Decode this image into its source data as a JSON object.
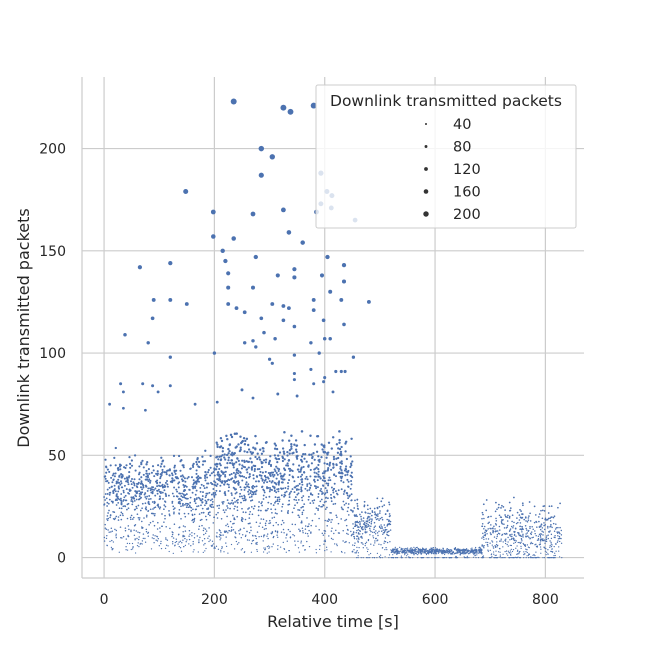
{
  "chart_data": {
    "type": "scatter",
    "title": "",
    "xlabel": "Relative time [s]",
    "ylabel": "Downlink transmitted packets",
    "xlim": [
      -40,
      870
    ],
    "ylim": [
      -10,
      235
    ],
    "xticks": [
      0,
      200,
      400,
      600,
      800
    ],
    "yticks": [
      0,
      50,
      100,
      150,
      200
    ],
    "xtick_labels": [
      "0",
      "200",
      "400",
      "600",
      "800"
    ],
    "ytick_labels": [
      "0",
      "50",
      "100",
      "150",
      "200"
    ],
    "grid": true,
    "point_color": "#4c72b0",
    "size_encoding": "Downlink transmitted packets",
    "legend": {
      "title": "Downlink transmitted packets",
      "placement": "top-right",
      "entries": [
        "40",
        "80",
        "120",
        "160",
        "200"
      ],
      "size_values": [
        40,
        80,
        120,
        160,
        200
      ]
    },
    "highlight_points": [
      {
        "x": 235,
        "y": 223
      },
      {
        "x": 325,
        "y": 220
      },
      {
        "x": 338,
        "y": 218
      },
      {
        "x": 380,
        "y": 221
      },
      {
        "x": 285,
        "y": 200
      },
      {
        "x": 305,
        "y": 196
      },
      {
        "x": 393,
        "y": 188
      },
      {
        "x": 285,
        "y": 187
      },
      {
        "x": 148,
        "y": 179
      },
      {
        "x": 404,
        "y": 179
      },
      {
        "x": 413,
        "y": 177
      },
      {
        "x": 393,
        "y": 173
      },
      {
        "x": 412,
        "y": 171
      },
      {
        "x": 325,
        "y": 170
      },
      {
        "x": 198,
        "y": 169
      },
      {
        "x": 270,
        "y": 168
      },
      {
        "x": 385,
        "y": 169
      },
      {
        "x": 455,
        "y": 165
      },
      {
        "x": 335,
        "y": 159
      },
      {
        "x": 198,
        "y": 157
      },
      {
        "x": 235,
        "y": 156
      },
      {
        "x": 360,
        "y": 154
      },
      {
        "x": 215,
        "y": 150
      },
      {
        "x": 405,
        "y": 147
      },
      {
        "x": 275,
        "y": 147
      },
      {
        "x": 120,
        "y": 144
      },
      {
        "x": 220,
        "y": 145
      },
      {
        "x": 435,
        "y": 143
      },
      {
        "x": 65,
        "y": 142
      },
      {
        "x": 345,
        "y": 141
      },
      {
        "x": 345,
        "y": 137
      },
      {
        "x": 225,
        "y": 139
      },
      {
        "x": 315,
        "y": 138
      },
      {
        "x": 395,
        "y": 138
      },
      {
        "x": 435,
        "y": 135
      },
      {
        "x": 270,
        "y": 132
      },
      {
        "x": 225,
        "y": 132
      },
      {
        "x": 410,
        "y": 130
      },
      {
        "x": 90,
        "y": 126
      },
      {
        "x": 120,
        "y": 126
      },
      {
        "x": 380,
        "y": 126
      },
      {
        "x": 430,
        "y": 126
      },
      {
        "x": 480,
        "y": 125
      },
      {
        "x": 150,
        "y": 124
      },
      {
        "x": 225,
        "y": 124
      },
      {
        "x": 305,
        "y": 124
      },
      {
        "x": 325,
        "y": 123
      },
      {
        "x": 335,
        "y": 122
      },
      {
        "x": 380,
        "y": 121
      },
      {
        "x": 240,
        "y": 122
      },
      {
        "x": 88,
        "y": 117
      },
      {
        "x": 255,
        "y": 120
      },
      {
        "x": 285,
        "y": 117
      },
      {
        "x": 325,
        "y": 116
      },
      {
        "x": 398,
        "y": 116
      },
      {
        "x": 345,
        "y": 113
      },
      {
        "x": 435,
        "y": 114
      },
      {
        "x": 290,
        "y": 110
      },
      {
        "x": 38,
        "y": 109
      },
      {
        "x": 310,
        "y": 107
      },
      {
        "x": 270,
        "y": 106
      },
      {
        "x": 400,
        "y": 107
      },
      {
        "x": 410,
        "y": 107
      },
      {
        "x": 80,
        "y": 105
      },
      {
        "x": 255,
        "y": 105
      },
      {
        "x": 375,
        "y": 105
      },
      {
        "x": 275,
        "y": 103
      },
      {
        "x": 390,
        "y": 100
      },
      {
        "x": 200,
        "y": 100
      },
      {
        "x": 345,
        "y": 99
      },
      {
        "x": 120,
        "y": 98
      },
      {
        "x": 452,
        "y": 98
      },
      {
        "x": 300,
        "y": 97
      },
      {
        "x": 305,
        "y": 95
      },
      {
        "x": 430,
        "y": 91
      },
      {
        "x": 345,
        "y": 90
      },
      {
        "x": 375,
        "y": 92
      },
      {
        "x": 437,
        "y": 91
      },
      {
        "x": 420,
        "y": 91
      },
      {
        "x": 345,
        "y": 87
      },
      {
        "x": 398,
        "y": 86
      },
      {
        "x": 30,
        "y": 85
      },
      {
        "x": 70,
        "y": 85
      },
      {
        "x": 88,
        "y": 84
      },
      {
        "x": 120,
        "y": 84
      },
      {
        "x": 400,
        "y": 88
      },
      {
        "x": 380,
        "y": 85
      },
      {
        "x": 98,
        "y": 81
      },
      {
        "x": 250,
        "y": 82
      },
      {
        "x": 35,
        "y": 81
      },
      {
        "x": 415,
        "y": 81
      },
      {
        "x": 10,
        "y": 75
      },
      {
        "x": 165,
        "y": 75
      },
      {
        "x": 205,
        "y": 76
      },
      {
        "x": 270,
        "y": 78
      },
      {
        "x": 350,
        "y": 79
      },
      {
        "x": 315,
        "y": 80
      },
      {
        "x": 35,
        "y": 73
      },
      {
        "x": 75,
        "y": 72
      }
    ],
    "trend_segments": [
      {
        "x_range": [
          0,
          200
        ],
        "y_typical": [
          15,
          50
        ],
        "y_median": 32
      },
      {
        "x_range": [
          200,
          450
        ],
        "y_typical": [
          20,
          60
        ],
        "y_median": 38
      },
      {
        "x_range": [
          450,
          520
        ],
        "y_typical": [
          5,
          30
        ],
        "y_median": 15
      },
      {
        "x_range": [
          520,
          685
        ],
        "y_typical": [
          2,
          5
        ],
        "y_median": 3
      },
      {
        "x_range": [
          685,
          830
        ],
        "y_typical": [
          3,
          30
        ],
        "y_median": 10
      }
    ]
  }
}
